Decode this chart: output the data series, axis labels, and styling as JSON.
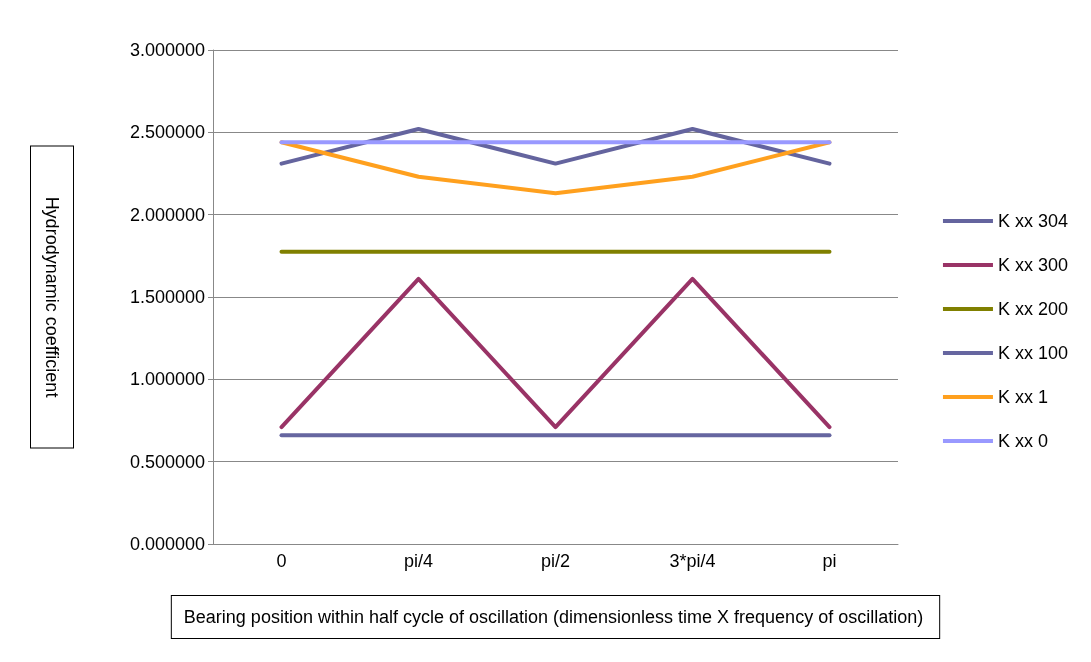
{
  "chart_data": {
    "type": "line",
    "xlabel": "Bearing position within half cycle of oscillation (dimensionless time X frequency of oscillation)",
    "ylabel": "Hydrodynamic coefficient",
    "categories": [
      "0",
      "pi/4",
      "pi/2",
      "3*pi/4",
      "pi"
    ],
    "series": [
      {
        "name": "K xx 304",
        "color": "#64649e",
        "values": [
          2.31,
          2.52,
          2.31,
          2.52,
          2.31
        ]
      },
      {
        "name": "K xx 300",
        "color": "#993366",
        "values": [
          0.71,
          1.61,
          0.71,
          1.61,
          0.71
        ]
      },
      {
        "name": "K xx 200",
        "color": "#808000",
        "values": [
          1.775,
          1.775,
          1.775,
          1.775,
          1.775
        ]
      },
      {
        "name": "K xx 100",
        "color": "#6666a0",
        "values": [
          0.66,
          0.66,
          0.66,
          0.66,
          0.66
        ]
      },
      {
        "name": "K xx 1",
        "color": "#ffa01e",
        "values": [
          2.44,
          2.23,
          2.13,
          2.23,
          2.44
        ]
      },
      {
        "name": "K xx 0",
        "color": "#9999ff",
        "values": [
          2.44,
          2.44,
          2.44,
          2.44,
          2.44
        ]
      }
    ],
    "ylim": [
      0,
      3
    ],
    "yticks": [
      {
        "value": 0,
        "label": "0.000000"
      },
      {
        "value": 0.5,
        "label": "0.500000"
      },
      {
        "value": 1,
        "label": "1.000000"
      },
      {
        "value": 1.5,
        "label": "1.500000"
      },
      {
        "value": 2,
        "label": "2.000000"
      },
      {
        "value": 2.5,
        "label": "2.500000"
      },
      {
        "value": 3,
        "label": "3.000000"
      }
    ],
    "grid": "y",
    "legend": "right",
    "marker": "none",
    "line_style": "solid"
  }
}
